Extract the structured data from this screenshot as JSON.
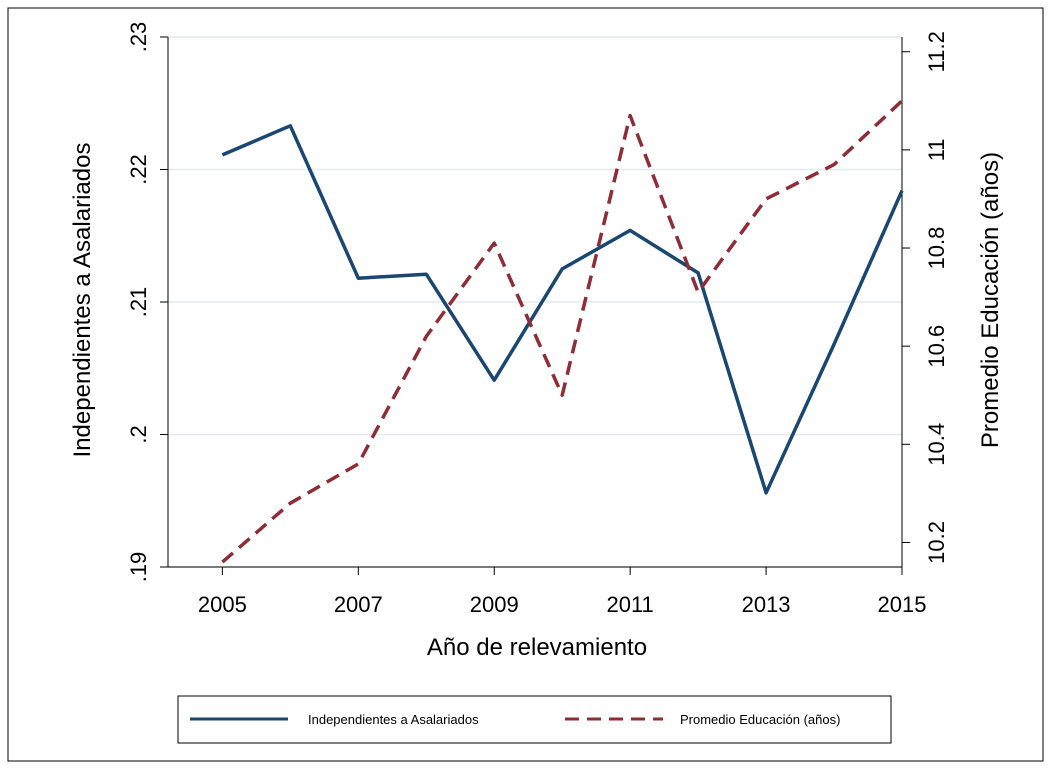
{
  "chart_data": {
    "type": "line",
    "title": "",
    "xlabel": "Año de relevamiento",
    "ylabel_left": "Independientes a Asalariados",
    "ylabel_right": "Promedio Educación (años)",
    "x": [
      2005,
      2006,
      2007,
      2008,
      2009,
      2010,
      2011,
      2012,
      2013,
      2014,
      2015
    ],
    "x_ticks": [
      "2005",
      "2007",
      "2009",
      "2011",
      "2013",
      "2015"
    ],
    "x_tick_values": [
      2005,
      2007,
      2009,
      2011,
      2013,
      2015
    ],
    "xlim": [
      2004.2,
      2015.0
    ],
    "y_left_ticks": [
      ".19",
      ".2",
      ".21",
      ".22",
      ".23"
    ],
    "y_left_tick_values": [
      0.19,
      0.2,
      0.21,
      0.22,
      0.23
    ],
    "ylim_left": [
      0.19,
      0.23
    ],
    "y_right_ticks": [
      "10.2",
      "10.4",
      "10.6",
      "10.8",
      "11",
      "11.2"
    ],
    "y_right_tick_values": [
      10.2,
      10.4,
      10.6,
      10.8,
      11.0,
      11.2
    ],
    "ylim_right": [
      10.15,
      11.23
    ],
    "grid": true,
    "legend_position": "bottom",
    "series": [
      {
        "name": "Independientes a Asalariados",
        "axis": "left",
        "color": "#1a4771",
        "dash": "solid",
        "values": [
          0.2211,
          0.2233,
          0.2118,
          0.2121,
          0.2041,
          0.2125,
          0.2154,
          0.2122,
          0.1956,
          0.2068,
          0.2184
        ]
      },
      {
        "name": "Promedio Educación (años)",
        "axis": "right",
        "color": "#8f2d37",
        "dash": "dashed",
        "values": [
          10.16,
          10.28,
          10.36,
          10.62,
          10.81,
          10.5,
          11.07,
          10.71,
          10.9,
          10.97,
          11.1
        ]
      }
    ]
  }
}
